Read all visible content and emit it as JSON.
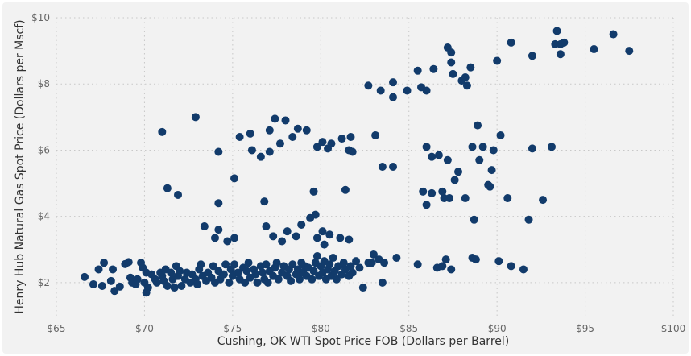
{
  "chart_data": {
    "type": "scatter",
    "title": "",
    "xlabel": "Cushing, OK WTI Spot Price FOB (Dollars per Barrel)",
    "ylabel": "Henry Hub Natural Gas Spot Price (Dollars per Mscf)",
    "xlim": [
      65,
      100
    ],
    "ylim": [
      1,
      10
    ],
    "x_ticks": [
      65,
      70,
      75,
      80,
      85,
      90,
      95,
      100
    ],
    "x_tick_labels": [
      "$65",
      "$70",
      "$75",
      "$80",
      "$85",
      "$90",
      "$95",
      "$100"
    ],
    "y_ticks": [
      2,
      4,
      6,
      8,
      10
    ],
    "y_tick_labels": [
      "$2",
      "$4",
      "$6",
      "$8",
      "$10"
    ],
    "grid": true,
    "legend": "none",
    "colors": {
      "point": "#123b6b",
      "background": "#f2f2f2",
      "grid": "#c8c8c8"
    },
    "points": [
      [
        66.6,
        2.17
      ],
      [
        67.1,
        1.95
      ],
      [
        67.4,
        2.4
      ],
      [
        67.6,
        1.9
      ],
      [
        67.7,
        2.6
      ],
      [
        68.1,
        2.05
      ],
      [
        68.2,
        2.4
      ],
      [
        68.3,
        1.75
      ],
      [
        68.6,
        1.88
      ],
      [
        68.9,
        2.56
      ],
      [
        69.1,
        2.62
      ],
      [
        69.2,
        2.15
      ],
      [
        69.3,
        2.0
      ],
      [
        69.5,
        1.95
      ],
      [
        69.6,
        2.1
      ],
      [
        69.8,
        2.6
      ],
      [
        69.9,
        2.45
      ],
      [
        70.0,
        2.0
      ],
      [
        70.1,
        2.3
      ],
      [
        70.2,
        1.85
      ],
      [
        70.1,
        1.7
      ],
      [
        70.4,
        2.25
      ],
      [
        70.6,
        2.1
      ],
      [
        70.7,
        2.0
      ],
      [
        70.9,
        2.3
      ],
      [
        71.0,
        2.2
      ],
      [
        71.1,
        2.05
      ],
      [
        71.2,
        2.4
      ],
      [
        71.3,
        1.9
      ],
      [
        71.5,
        2.3
      ],
      [
        71.6,
        2.1
      ],
      [
        71.7,
        1.85
      ],
      [
        71.8,
        2.5
      ],
      [
        71.9,
        2.2
      ],
      [
        72.0,
        2.35
      ],
      [
        72.1,
        1.9
      ],
      [
        72.3,
        2.1
      ],
      [
        72.4,
        2.3
      ],
      [
        72.6,
        2.0
      ],
      [
        72.7,
        2.25
      ],
      [
        72.9,
        2.1
      ],
      [
        73.0,
        1.95
      ],
      [
        73.1,
        2.4
      ],
      [
        73.2,
        2.55
      ],
      [
        73.3,
        2.2
      ],
      [
        73.5,
        2.05
      ],
      [
        73.6,
        2.3
      ],
      [
        73.8,
        2.15
      ],
      [
        73.9,
        2.5
      ],
      [
        74.0,
        2.0
      ],
      [
        74.2,
        2.35
      ],
      [
        74.3,
        2.1
      ],
      [
        74.5,
        2.25
      ],
      [
        74.6,
        2.55
      ],
      [
        74.8,
        2.0
      ],
      [
        74.9,
        2.4
      ],
      [
        75.0,
        2.2
      ],
      [
        75.1,
        2.55
      ],
      [
        75.3,
        2.3
      ],
      [
        75.4,
        2.1
      ],
      [
        75.6,
        2.45
      ],
      [
        75.7,
        2.0
      ],
      [
        75.8,
        2.35
      ],
      [
        75.9,
        2.6
      ],
      [
        76.0,
        2.15
      ],
      [
        76.2,
        2.4
      ],
      [
        76.3,
        2.25
      ],
      [
        76.4,
        2.0
      ],
      [
        76.6,
        2.5
      ],
      [
        76.7,
        2.3
      ],
      [
        76.8,
        2.1
      ],
      [
        76.9,
        2.55
      ],
      [
        77.0,
        2.0
      ],
      [
        77.1,
        2.35
      ],
      [
        77.3,
        2.2
      ],
      [
        77.4,
        2.45
      ],
      [
        77.5,
        2.6
      ],
      [
        77.6,
        2.1
      ],
      [
        77.8,
        2.3
      ],
      [
        77.9,
        2.5
      ],
      [
        78.1,
        2.2
      ],
      [
        78.2,
        2.4
      ],
      [
        78.3,
        2.05
      ],
      [
        78.4,
        2.55
      ],
      [
        78.6,
        2.25
      ],
      [
        78.7,
        2.4
      ],
      [
        78.8,
        2.1
      ],
      [
        78.9,
        2.6
      ],
      [
        79.0,
        2.3
      ],
      [
        79.1,
        2.5
      ],
      [
        79.2,
        2.2
      ],
      [
        79.3,
        2.45
      ],
      [
        79.5,
        2.1
      ],
      [
        79.6,
        2.35
      ],
      [
        79.7,
        2.6
      ],
      [
        79.8,
        2.8
      ],
      [
        79.9,
        2.2
      ],
      [
        80.0,
        2.5
      ],
      [
        80.1,
        2.3
      ],
      [
        80.2,
        2.65
      ],
      [
        80.3,
        2.1
      ],
      [
        80.4,
        2.4
      ],
      [
        80.5,
        2.55
      ],
      [
        80.6,
        2.2
      ],
      [
        80.7,
        2.75
      ],
      [
        80.8,
        2.35
      ],
      [
        80.9,
        2.1
      ],
      [
        81.0,
        2.5
      ],
      [
        81.2,
        2.25
      ],
      [
        81.3,
        2.6
      ],
      [
        81.4,
        2.4
      ],
      [
        81.6,
        2.2
      ],
      [
        81.7,
        2.5
      ],
      [
        81.8,
        2.3
      ],
      [
        82.0,
        2.65
      ],
      [
        82.2,
        2.45
      ],
      [
        82.4,
        1.85
      ],
      [
        82.7,
        2.6
      ],
      [
        82.9,
        2.6
      ],
      [
        83.0,
        2.85
      ],
      [
        83.3,
        2.7
      ],
      [
        83.5,
        2.0
      ],
      [
        83.6,
        2.6
      ],
      [
        84.3,
        2.75
      ],
      [
        85.5,
        2.55
      ],
      [
        86.6,
        2.45
      ],
      [
        86.9,
        2.5
      ],
      [
        87.1,
        2.7
      ],
      [
        87.4,
        2.4
      ],
      [
        88.6,
        2.75
      ],
      [
        88.8,
        2.7
      ],
      [
        90.1,
        2.65
      ],
      [
        90.8,
        2.5
      ],
      [
        91.5,
        2.4
      ],
      [
        73.4,
        3.7
      ],
      [
        74.0,
        3.35
      ],
      [
        74.2,
        3.6
      ],
      [
        74.7,
        3.25
      ],
      [
        75.1,
        3.35
      ],
      [
        76.9,
        3.7
      ],
      [
        77.3,
        3.4
      ],
      [
        77.8,
        3.25
      ],
      [
        78.1,
        3.55
      ],
      [
        78.6,
        3.4
      ],
      [
        78.9,
        3.75
      ],
      [
        79.4,
        3.95
      ],
      [
        79.7,
        4.05
      ],
      [
        79.8,
        3.35
      ],
      [
        80.1,
        3.55
      ],
      [
        80.2,
        3.15
      ],
      [
        80.5,
        3.45
      ],
      [
        81.1,
        3.35
      ],
      [
        81.6,
        3.3
      ],
      [
        81.4,
        4.8
      ],
      [
        79.6,
        4.75
      ],
      [
        76.8,
        4.45
      ],
      [
        74.2,
        4.4
      ],
      [
        71.3,
        4.85
      ],
      [
        71.9,
        4.65
      ],
      [
        75.1,
        5.15
      ],
      [
        72.9,
        7.0
      ],
      [
        71.0,
        6.55
      ],
      [
        74.2,
        5.95
      ],
      [
        75.4,
        6.4
      ],
      [
        76.1,
        6.0
      ],
      [
        76.6,
        5.8
      ],
      [
        76.0,
        6.5
      ],
      [
        77.1,
        6.6
      ],
      [
        77.4,
        6.95
      ],
      [
        78.0,
        6.9
      ],
      [
        77.7,
        6.2
      ],
      [
        78.7,
        6.65
      ],
      [
        78.4,
        6.4
      ],
      [
        77.1,
        5.95
      ],
      [
        79.2,
        6.6
      ],
      [
        79.8,
        6.1
      ],
      [
        80.1,
        6.25
      ],
      [
        80.4,
        6.05
      ],
      [
        80.6,
        6.2
      ],
      [
        81.2,
        6.35
      ],
      [
        81.6,
        6.0
      ],
      [
        81.8,
        5.95
      ],
      [
        81.7,
        6.4
      ],
      [
        83.1,
        6.45
      ],
      [
        83.5,
        5.5
      ],
      [
        84.1,
        5.5
      ],
      [
        82.7,
        7.95
      ],
      [
        83.4,
        7.8
      ],
      [
        84.1,
        7.6
      ],
      [
        84.1,
        8.05
      ],
      [
        84.9,
        7.8
      ],
      [
        85.7,
        7.9
      ],
      [
        86.0,
        7.8
      ],
      [
        85.5,
        8.4
      ],
      [
        86.4,
        8.45
      ],
      [
        86.0,
        6.1
      ],
      [
        86.3,
        5.8
      ],
      [
        86.7,
        5.85
      ],
      [
        85.8,
        4.75
      ],
      [
        86.0,
        4.35
      ],
      [
        86.3,
        4.7
      ],
      [
        87.0,
        4.55
      ],
      [
        86.9,
        4.75
      ],
      [
        87.3,
        4.55
      ],
      [
        87.2,
        5.7
      ],
      [
        87.6,
        5.1
      ],
      [
        87.8,
        5.35
      ],
      [
        88.2,
        4.55
      ],
      [
        88.7,
        3.9
      ],
      [
        88.6,
        6.1
      ],
      [
        89.0,
        5.7
      ],
      [
        89.7,
        5.4
      ],
      [
        89.5,
        4.95
      ],
      [
        89.6,
        4.9
      ],
      [
        88.9,
        6.75
      ],
      [
        89.2,
        6.1
      ],
      [
        89.8,
        6.0
      ],
      [
        90.2,
        6.45
      ],
      [
        90.6,
        4.55
      ],
      [
        91.8,
        3.9
      ],
      [
        92.6,
        4.5
      ],
      [
        92.0,
        6.05
      ],
      [
        93.1,
        6.1
      ],
      [
        87.4,
        8.65
      ],
      [
        87.2,
        9.1
      ],
      [
        87.4,
        8.95
      ],
      [
        87.5,
        8.3
      ],
      [
        88.0,
        8.1
      ],
      [
        88.2,
        8.2
      ],
      [
        88.3,
        7.95
      ],
      [
        88.5,
        8.5
      ],
      [
        90.0,
        8.7
      ],
      [
        90.8,
        9.25
      ],
      [
        92.0,
        8.85
      ],
      [
        93.3,
        9.2
      ],
      [
        93.4,
        9.6
      ],
      [
        93.6,
        9.2
      ],
      [
        93.6,
        8.9
      ],
      [
        93.8,
        9.25
      ],
      [
        95.5,
        9.05
      ],
      [
        96.6,
        9.5
      ],
      [
        97.5,
        9.0
      ]
    ]
  }
}
